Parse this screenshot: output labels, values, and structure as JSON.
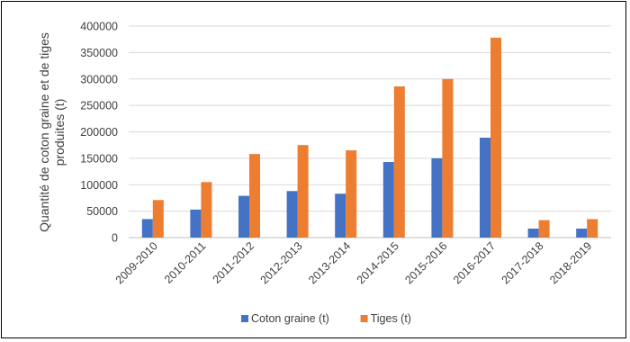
{
  "chart_data": {
    "type": "bar",
    "title": "",
    "xlabel": "",
    "ylabel": "Quantité de coton graine et de tiges produites (t)",
    "ylabel_lines": [
      "Quantité de coton graine et de tiges",
      "produites (t)"
    ],
    "categories": [
      "2009-2010",
      "2010-2011",
      "2011-2012",
      "2012-2013",
      "2013-2014",
      "2014-2015",
      "2015-2016",
      "2016-2017",
      "2017-2018",
      "2018-2019"
    ],
    "series": [
      {
        "name": "Coton graine (t)",
        "color": "#4472C4",
        "values": [
          35000,
          53000,
          79000,
          88000,
          83000,
          143000,
          150000,
          189000,
          17000,
          17000
        ]
      },
      {
        "name": "Tiges (t)",
        "color": "#ED7D31",
        "values": [
          71000,
          105000,
          158000,
          175000,
          165000,
          286000,
          300000,
          378000,
          33000,
          35000
        ]
      }
    ],
    "ylim": [
      0,
      400000
    ],
    "yticks": [
      0,
      50000,
      100000,
      150000,
      200000,
      250000,
      300000,
      350000,
      400000
    ],
    "grid": true,
    "legend_position": "bottom"
  }
}
